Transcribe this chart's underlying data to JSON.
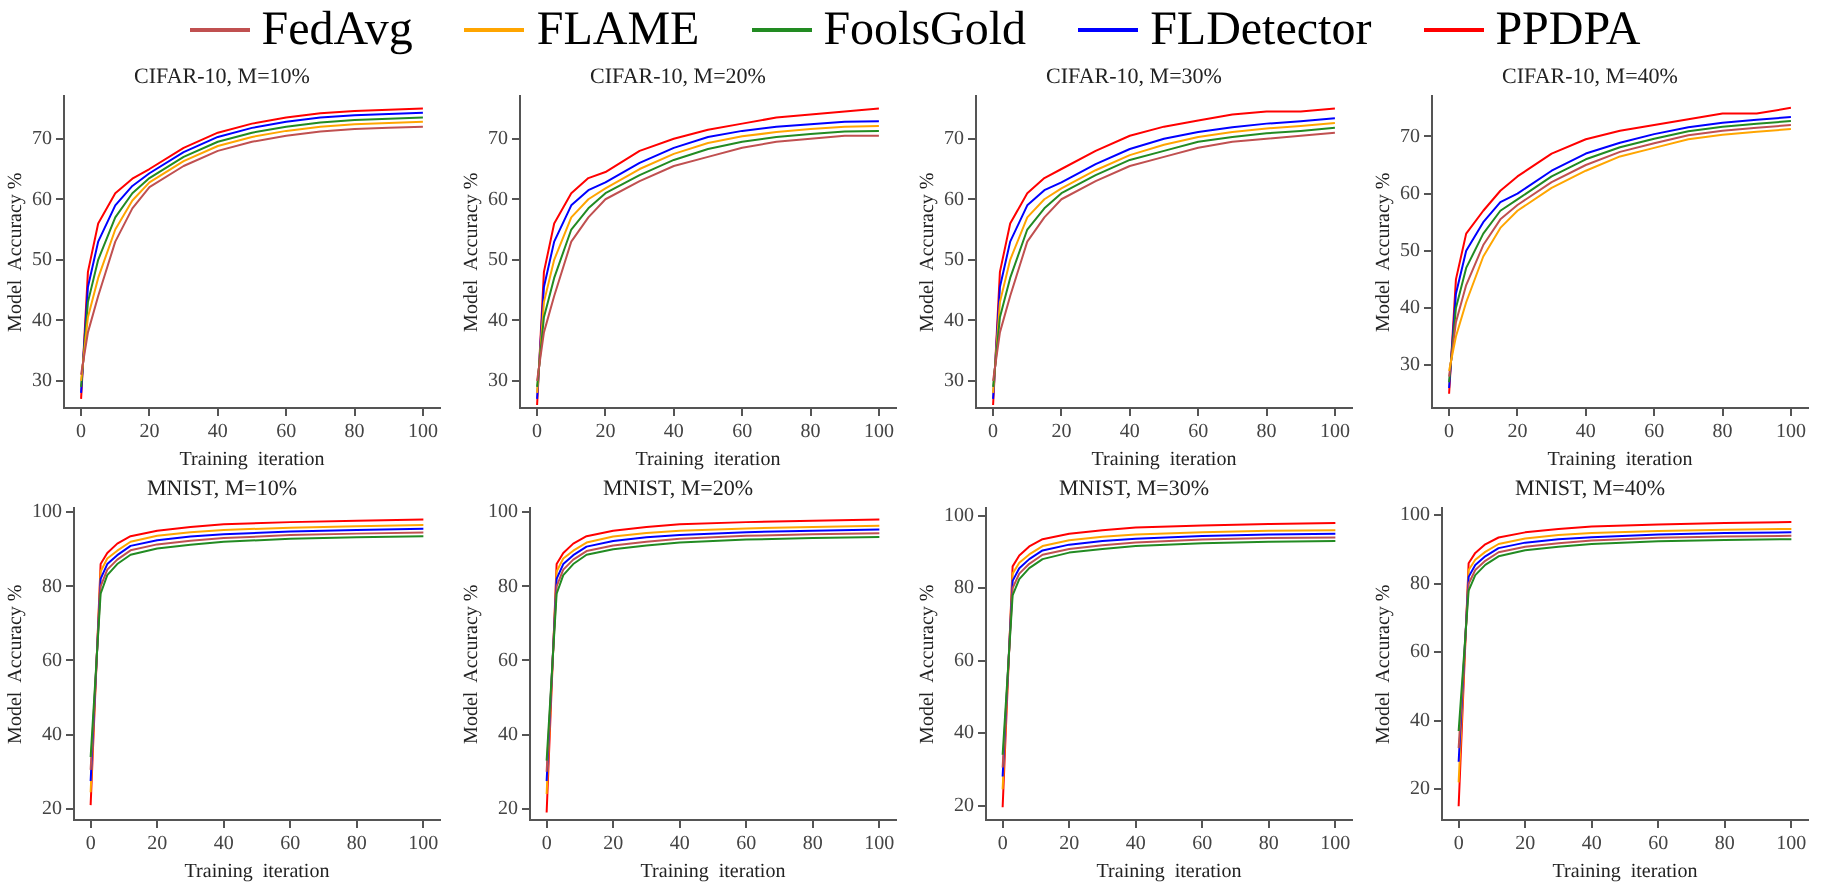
{
  "chart_data": [
    {
      "type": "line",
      "title": "CIFAR-10, M=10%",
      "xlabel": "Training  iteration",
      "ylabel": "Model  Accuracy %",
      "legend": "top",
      "grid": false,
      "marker": "none",
      "x": [
        0,
        2,
        5,
        10,
        15,
        20,
        30,
        40,
        50,
        60,
        70,
        80,
        90,
        100
      ],
      "xlim": [
        -5,
        105
      ],
      "xticks": [
        0,
        20,
        40,
        60,
        80,
        100
      ],
      "ylim": [
        25.5,
        77
      ],
      "yticks": [
        30,
        40,
        50,
        60,
        70
      ],
      "series": [
        {
          "name": "FedAvg",
          "color": "#c05050",
          "values": [
            31,
            38,
            44,
            53,
            58.5,
            62,
            65.5,
            68,
            69.5,
            70.5,
            71.2,
            71.6,
            71.8,
            72
          ]
        },
        {
          "name": "FLAME",
          "color": "#ffa500",
          "values": [
            30,
            40.5,
            47,
            55,
            59.8,
            62.8,
            66.3,
            68.8,
            70.3,
            71.3,
            72,
            72.4,
            72.6,
            72.8
          ]
        },
        {
          "name": "FoolsGold",
          "color": "#228b22",
          "values": [
            29,
            43,
            50,
            57,
            61,
            63.5,
            67,
            69.5,
            71,
            72,
            72.7,
            73.1,
            73.3,
            73.5
          ]
        },
        {
          "name": "FLDetector",
          "color": "#0000ff",
          "values": [
            28,
            45.5,
            53,
            59,
            62.2,
            64.3,
            67.8,
            70.3,
            71.8,
            72.8,
            73.5,
            73.9,
            74.1,
            74.3
          ]
        },
        {
          "name": "PPDPA",
          "color": "#ff0000",
          "values": [
            27,
            48,
            56,
            61,
            63.4,
            65,
            68.5,
            71,
            72.5,
            73.5,
            74.2,
            74.6,
            74.8,
            75
          ]
        }
      ]
    },
    {
      "type": "line",
      "title": "CIFAR-10, M=20%",
      "xlabel": "Training  iteration",
      "ylabel": "Model  Accuracy %",
      "grid": false,
      "marker": "none",
      "x": [
        0,
        2,
        5,
        10,
        15,
        20,
        30,
        40,
        50,
        60,
        70,
        80,
        90,
        100
      ],
      "xlim": [
        -5,
        105
      ],
      "xticks": [
        0,
        20,
        40,
        60,
        80,
        100
      ],
      "ylim": [
        25.5,
        77
      ],
      "yticks": [
        30,
        40,
        50,
        60,
        70
      ],
      "series": [
        {
          "color": "#c05050",
          "values": [
            30,
            38,
            44,
            53,
            57,
            60,
            63,
            65.5,
            67,
            68.5,
            69.5,
            70,
            70.5,
            70.5
          ]
        },
        {
          "color": "#228b22",
          "values": [
            29,
            40.5,
            47,
            55,
            58.5,
            61,
            64,
            66.5,
            68.3,
            69.5,
            70.3,
            70.8,
            71.2,
            71.3
          ]
        },
        {
          "color": "#ffa500",
          "values": [
            28,
            43,
            50,
            57,
            60,
            61.8,
            65,
            67.5,
            69.3,
            70.4,
            71.1,
            71.6,
            72,
            72.1
          ]
        },
        {
          "color": "#0000ff",
          "values": [
            27,
            45.5,
            53,
            59,
            61.5,
            62.8,
            66,
            68.5,
            70.3,
            71.3,
            72,
            72.4,
            72.8,
            72.9
          ]
        },
        {
          "color": "#ff0000",
          "values": [
            26,
            48,
            56,
            61,
            63.5,
            64.5,
            68,
            70,
            71.5,
            72.5,
            73.5,
            74,
            74.5,
            75
          ]
        }
      ]
    },
    {
      "type": "line",
      "title": "CIFAR-10, M=30%",
      "xlabel": "Training  iteration",
      "ylabel": "Model  Accuracy %",
      "grid": false,
      "marker": "none",
      "x": [
        0,
        2,
        5,
        10,
        15,
        20,
        30,
        40,
        50,
        60,
        70,
        80,
        90,
        100
      ],
      "xlim": [
        -5,
        105
      ],
      "xticks": [
        0,
        20,
        40,
        60,
        80,
        100
      ],
      "ylim": [
        25.5,
        77
      ],
      "yticks": [
        30,
        40,
        50,
        60,
        70
      ],
      "series": [
        {
          "color": "#c05050",
          "values": [
            30,
            38,
            44,
            53,
            57,
            60,
            63,
            65.5,
            67,
            68.5,
            69.5,
            70,
            70.5,
            71
          ]
        },
        {
          "color": "#228b22",
          "values": [
            29,
            40.5,
            47,
            55,
            58.5,
            61,
            64,
            66.5,
            68,
            69.5,
            70.3,
            70.9,
            71.3,
            71.8
          ]
        },
        {
          "color": "#ffa500",
          "values": [
            28,
            43,
            50,
            57,
            60,
            61.8,
            64.8,
            67.3,
            69,
            70.3,
            71.1,
            71.7,
            72.1,
            72.6
          ]
        },
        {
          "color": "#0000ff",
          "values": [
            27,
            45.5,
            53,
            59,
            61.5,
            62.8,
            65.8,
            68.3,
            70,
            71.1,
            71.9,
            72.5,
            72.9,
            73.4
          ]
        },
        {
          "color": "#ff0000",
          "values": [
            26,
            48,
            56,
            61,
            63.5,
            65,
            68,
            70.5,
            72,
            73,
            74,
            74.5,
            74.5,
            75
          ]
        }
      ]
    },
    {
      "type": "line",
      "title": "CIFAR-10, M=40%",
      "xlabel": "Training  iteration",
      "ylabel": "Model  Accuracy %",
      "grid": false,
      "marker": "none",
      "x": [
        0,
        2,
        5,
        10,
        15,
        20,
        30,
        40,
        50,
        60,
        70,
        80,
        90,
        100
      ],
      "xlim": [
        -5,
        105
      ],
      "xticks": [
        0,
        20,
        40,
        60,
        80,
        100
      ],
      "ylim": [
        22.5,
        77
      ],
      "yticks": [
        30,
        40,
        50,
        60,
        70
      ],
      "series": [
        {
          "color": "#ffa500",
          "values": [
            29,
            35,
            41,
            49,
            54,
            57,
            61,
            64,
            66.5,
            68,
            69.5,
            70.3,
            70.8,
            71.3
          ]
        },
        {
          "color": "#c05050",
          "values": [
            28,
            37.5,
            44,
            51,
            55.5,
            58,
            62,
            65,
            67.3,
            68.8,
            70.2,
            71,
            71.5,
            72
          ]
        },
        {
          "color": "#228b22",
          "values": [
            27,
            40,
            47,
            53,
            57,
            59,
            63,
            66,
            68.1,
            69.6,
            70.9,
            71.7,
            72.2,
            72.7
          ]
        },
        {
          "color": "#0000ff",
          "values": [
            26,
            42.5,
            50,
            55,
            58.5,
            60,
            64,
            67,
            68.9,
            70.4,
            71.6,
            72.4,
            72.9,
            73.4
          ]
        },
        {
          "color": "#ff0000",
          "values": [
            25,
            45,
            53,
            57,
            60.5,
            63,
            67,
            69.5,
            71,
            72,
            73,
            74,
            74,
            75
          ]
        }
      ]
    },
    {
      "type": "line",
      "title": "MNIST, M=10%",
      "xlabel": "Training  iteration",
      "ylabel": "Model  Accuracy %",
      "grid": false,
      "marker": "none",
      "x": [
        0,
        3,
        5,
        8,
        12,
        20,
        30,
        40,
        60,
        80,
        100
      ],
      "xlim": [
        -5,
        105
      ],
      "xticks": [
        0,
        20,
        40,
        60,
        80,
        100
      ],
      "ylim": [
        17,
        101
      ],
      "yticks": [
        20,
        40,
        60,
        80,
        100
      ],
      "series": [
        {
          "color": "#228b22",
          "values": [
            34,
            78,
            83,
            86,
            88.5,
            90.2,
            91.2,
            92,
            92.8,
            93.2,
            93.5
          ]
        },
        {
          "color": "#c05050",
          "values": [
            30.5,
            80,
            84.5,
            87.2,
            89.7,
            91.3,
            92.3,
            93,
            93.8,
            94.2,
            94.5
          ]
        },
        {
          "color": "#0000ff",
          "values": [
            27.5,
            82,
            86,
            88.4,
            90.9,
            92.4,
            93.4,
            94,
            94.8,
            95.2,
            95.5
          ]
        },
        {
          "color": "#ffa500",
          "values": [
            24.5,
            84,
            87.5,
            89.6,
            92,
            93.6,
            94.6,
            95.2,
            95.8,
            96.2,
            96.5
          ]
        },
        {
          "color": "#ff0000",
          "values": [
            21,
            86,
            89,
            91.5,
            93.5,
            95,
            96,
            96.7,
            97.3,
            97.7,
            98
          ]
        }
      ]
    },
    {
      "type": "line",
      "title": "MNIST, M=20%",
      "xlabel": "Training  iteration",
      "ylabel": "Model  Accuracy %",
      "grid": false,
      "marker": "none",
      "x": [
        0,
        3,
        5,
        8,
        12,
        20,
        30,
        40,
        60,
        80,
        100
      ],
      "xlim": [
        -5,
        105
      ],
      "xticks": [
        0,
        20,
        40,
        60,
        80,
        100
      ],
      "ylim": [
        17,
        101
      ],
      "yticks": [
        20,
        40,
        60,
        80,
        100
      ],
      "series": [
        {
          "color": "#228b22",
          "values": [
            33,
            78,
            83,
            86,
            88.5,
            90,
            91,
            91.8,
            92.6,
            93,
            93.3
          ]
        },
        {
          "color": "#c05050",
          "values": [
            30,
            80,
            84.5,
            87.2,
            89.5,
            91,
            92,
            92.8,
            93.6,
            94,
            94.3
          ]
        },
        {
          "color": "#0000ff",
          "values": [
            27.5,
            82,
            86,
            88.4,
            90.7,
            92.2,
            93.2,
            93.8,
            94.6,
            95,
            95.3
          ]
        },
        {
          "color": "#ffa500",
          "values": [
            24,
            84,
            87.5,
            89.6,
            91.8,
            93.4,
            94.4,
            95,
            95.6,
            96,
            96.3
          ]
        },
        {
          "color": "#ff0000",
          "values": [
            19,
            86,
            89,
            91.5,
            93.5,
            95,
            96,
            96.7,
            97.3,
            97.7,
            98
          ]
        }
      ]
    },
    {
      "type": "line",
      "title": "MNIST, M=30%",
      "xlabel": "Training  iteration",
      "ylabel": "Model  Accuracy %",
      "grid": false,
      "marker": "none",
      "x": [
        0,
        3,
        5,
        8,
        12,
        20,
        30,
        40,
        60,
        80,
        100
      ],
      "xlim": [
        -5,
        105
      ],
      "xticks": [
        0,
        20,
        40,
        60,
        80,
        100
      ],
      "ylim": [
        16,
        102
      ],
      "yticks": [
        20,
        40,
        60,
        80,
        100
      ],
      "series": [
        {
          "color": "#228b22",
          "values": [
            34,
            78,
            82.5,
            85.5,
            88,
            89.8,
            90.8,
            91.6,
            92.4,
            92.8,
            93
          ]
        },
        {
          "color": "#c05050",
          "values": [
            30.5,
            80,
            84,
            86.7,
            89.2,
            90.8,
            91.8,
            92.6,
            93.4,
            93.8,
            94
          ]
        },
        {
          "color": "#0000ff",
          "values": [
            28,
            82,
            85.5,
            88,
            90.4,
            92,
            93,
            93.6,
            94.4,
            94.8,
            95
          ]
        },
        {
          "color": "#ffa500",
          "values": [
            24.5,
            84,
            87,
            89.3,
            91.6,
            93.2,
            94.2,
            94.8,
            95.4,
            95.8,
            96
          ]
        },
        {
          "color": "#ff0000",
          "values": [
            19.5,
            86,
            89,
            91.5,
            93.5,
            95,
            96,
            96.7,
            97.3,
            97.7,
            98
          ]
        }
      ]
    },
    {
      "type": "line",
      "title": "MNIST, M=40%",
      "xlabel": "Training  iteration",
      "ylabel": "Model  Accuracy %",
      "grid": false,
      "marker": "none",
      "x": [
        0,
        3,
        5,
        8,
        12,
        20,
        30,
        40,
        60,
        80,
        100
      ],
      "xlim": [
        -5,
        105
      ],
      "xticks": [
        0,
        20,
        40,
        60,
        80,
        100
      ],
      "ylim": [
        11,
        102
      ],
      "yticks": [
        20,
        40,
        60,
        80,
        100
      ],
      "series": [
        {
          "color": "#228b22",
          "values": [
            37,
            78,
            82.5,
            85.5,
            88,
            89.8,
            90.8,
            91.6,
            92.4,
            92.8,
            93
          ]
        },
        {
          "color": "#c05050",
          "values": [
            32,
            80,
            84,
            86.7,
            89.2,
            90.8,
            91.8,
            92.6,
            93.4,
            93.8,
            94
          ]
        },
        {
          "color": "#0000ff",
          "values": [
            28,
            82,
            85.5,
            88,
            90.4,
            92,
            93,
            93.6,
            94.4,
            94.8,
            95
          ]
        },
        {
          "color": "#ffa500",
          "values": [
            22,
            84,
            87,
            89.3,
            91.6,
            93.2,
            94.2,
            94.8,
            95.4,
            95.8,
            96
          ]
        },
        {
          "color": "#ff0000",
          "values": [
            15,
            86,
            89,
            91.5,
            93.5,
            95,
            96,
            96.7,
            97.3,
            97.7,
            98
          ]
        }
      ]
    }
  ]
}
